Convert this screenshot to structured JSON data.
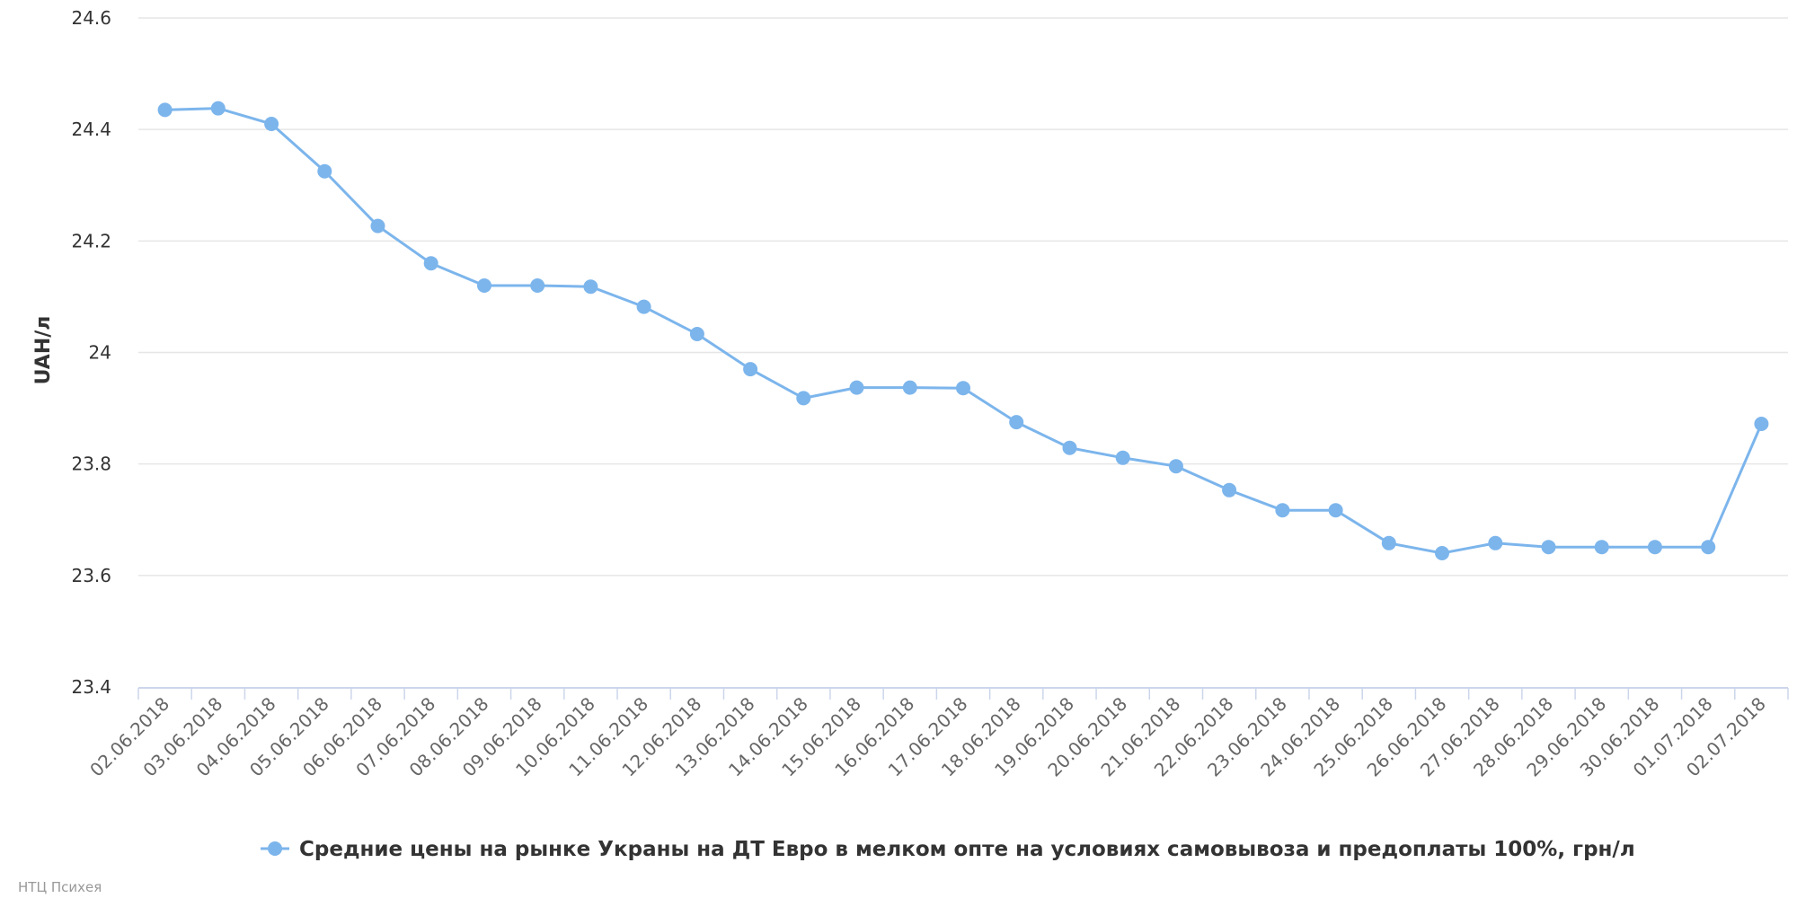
{
  "chart_data": {
    "type": "line",
    "title": "",
    "xlabel": "",
    "ylabel": "UAH/л",
    "ylim": [
      23.4,
      24.6
    ],
    "yticks": [
      "23.4",
      "23.6",
      "23.8",
      "24",
      "24.2",
      "24.4",
      "24.6"
    ],
    "grid": true,
    "legend_position": "bottom",
    "categories": [
      "02.06.2018",
      "03.06.2018",
      "04.06.2018",
      "05.06.2018",
      "06.06.2018",
      "07.06.2018",
      "08.06.2018",
      "09.06.2018",
      "10.06.2018",
      "11.06.2018",
      "12.06.2018",
      "13.06.2018",
      "14.06.2018",
      "15.06.2018",
      "16.06.2018",
      "17.06.2018",
      "18.06.2018",
      "19.06.2018",
      "20.06.2018",
      "21.06.2018",
      "22.06.2018",
      "23.06.2018",
      "24.06.2018",
      "25.06.2018",
      "26.06.2018",
      "27.06.2018",
      "28.06.2018",
      "29.06.2018",
      "30.06.2018",
      "01.07.2018",
      "02.07.2018"
    ],
    "series": [
      {
        "name": "Средние цены на рынке Украны на ДТ Евро в мелком опте на условиях самовывоза и предоплаты 100%, грн/л",
        "color": "#7cb5ec",
        "values": [
          24.435,
          24.438,
          24.41,
          24.325,
          24.227,
          24.16,
          24.12,
          24.12,
          24.118,
          24.082,
          24.033,
          23.97,
          23.918,
          23.937,
          23.937,
          23.936,
          23.875,
          23.829,
          23.811,
          23.796,
          23.753,
          23.717,
          23.717,
          23.658,
          23.64,
          23.658,
          23.651,
          23.651,
          23.651,
          23.651,
          23.872
        ]
      }
    ]
  },
  "credits": "НТЦ Психея"
}
